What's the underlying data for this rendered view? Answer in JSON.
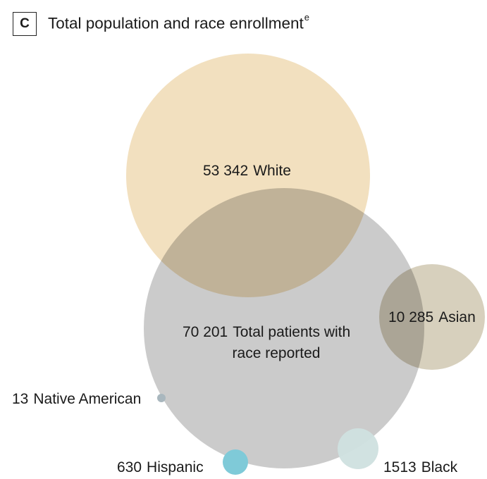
{
  "panel": {
    "letter": "C",
    "title": "Total population and race enrollment",
    "footnote_mark": "e"
  },
  "groups": [
    {
      "key": "white",
      "count": "53 342",
      "label": "White",
      "color": "#f2e0bf"
    },
    {
      "key": "total",
      "count": "70 201",
      "label": "Total patients with",
      "label_line2": "race reported",
      "color": "#bdbdbd"
    },
    {
      "key": "asian",
      "count": "10 285",
      "label": "Asian",
      "color": "#d3cbb6"
    },
    {
      "key": "native_american",
      "count": "13",
      "label": "Native American",
      "color": "#a9b7be"
    },
    {
      "key": "hispanic",
      "count": "630",
      "label": "Hispanic",
      "color": "#7fcad8"
    },
    {
      "key": "black",
      "count": "1513",
      "label": "Black",
      "color": "#cfe0df"
    }
  ]
}
